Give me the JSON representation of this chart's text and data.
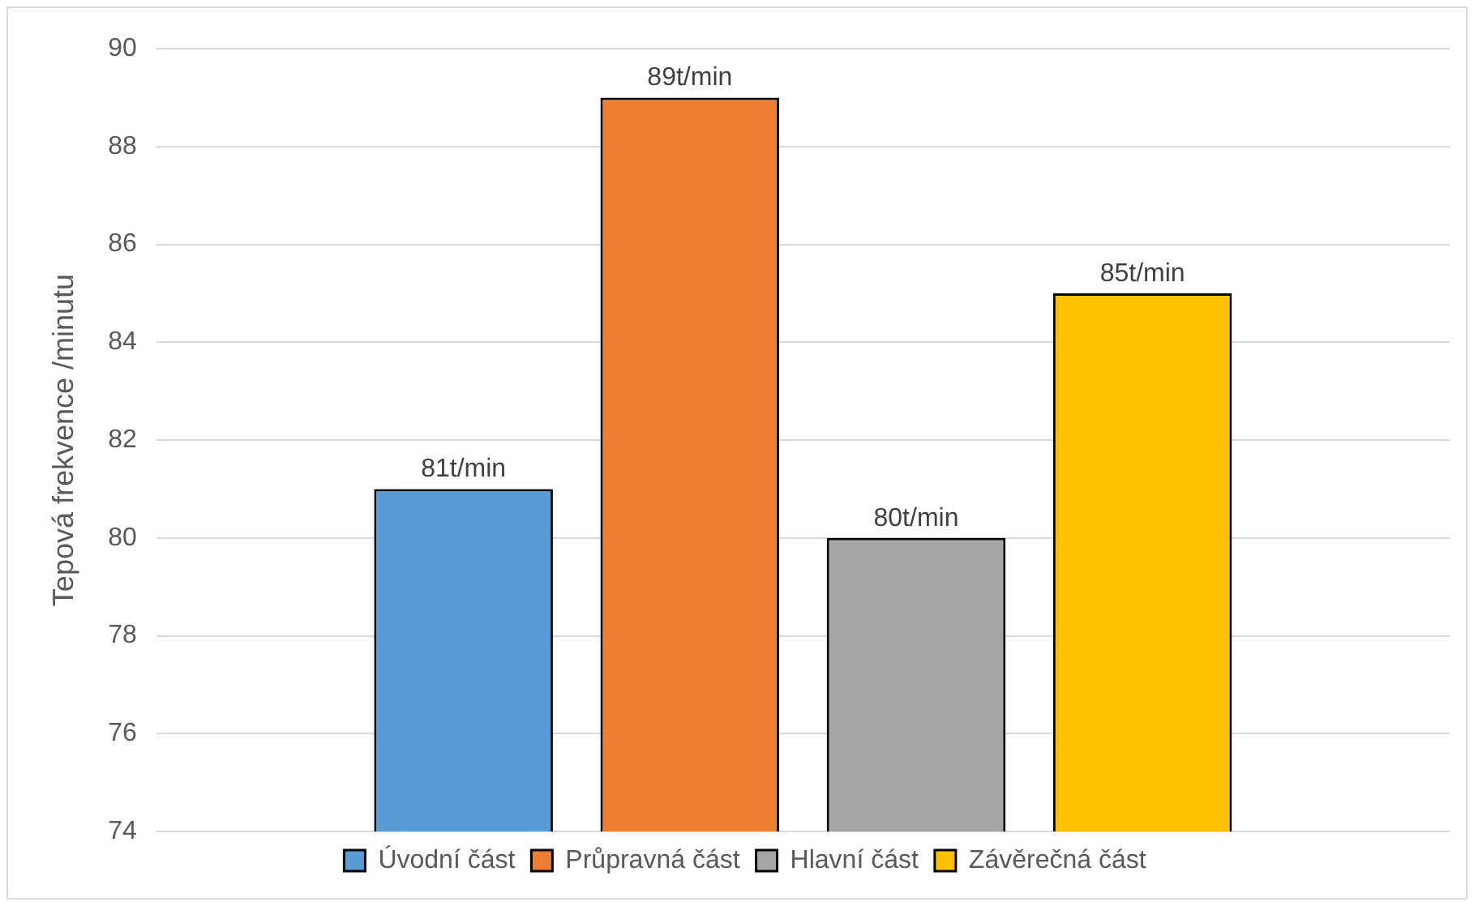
{
  "chart_data": {
    "type": "bar",
    "ylabel": "Tepová frekvence /minutu",
    "categories": [
      null
    ],
    "series": [
      {
        "name": "Úvodní část",
        "color": "#5b9bd5",
        "values": [
          81
        ],
        "value_labels": [
          "81t/min"
        ]
      },
      {
        "name": "Průpravná část",
        "color": "#ed7d31",
        "values": [
          89
        ],
        "value_labels": [
          "89t/min"
        ]
      },
      {
        "name": "Hlavní část",
        "color": "#a5a5a5",
        "values": [
          80
        ],
        "value_labels": [
          "80t/min"
        ]
      },
      {
        "name": "Závěrečná část",
        "color": "#ffc000",
        "values": [
          85
        ],
        "value_labels": [
          "85t/min"
        ]
      }
    ],
    "ylim": [
      74,
      90
    ],
    "yticks": [
      74,
      76,
      78,
      80,
      82,
      84,
      86,
      88,
      90
    ],
    "grid": "y",
    "legend": "bottom",
    "tick_labels": "y"
  }
}
